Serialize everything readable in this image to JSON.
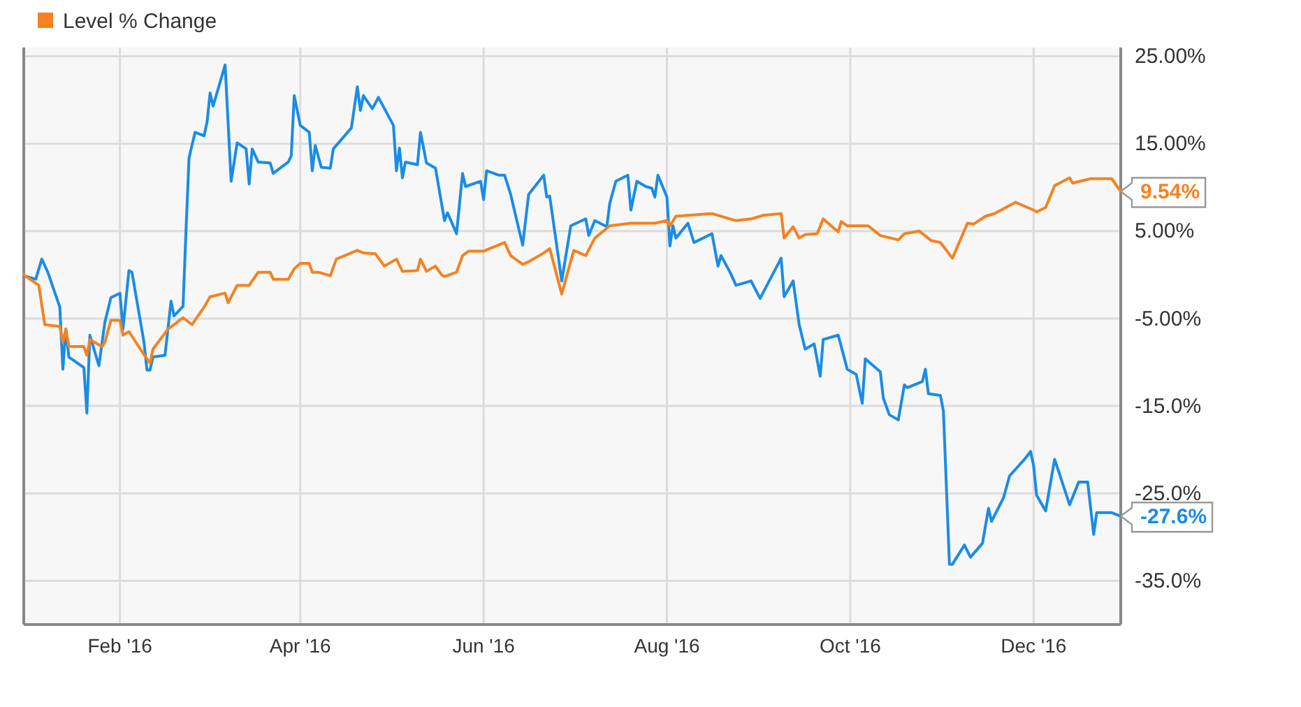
{
  "chart_data": {
    "type": "line",
    "xlim": [
      "2015-12-31",
      "2016-12-30"
    ],
    "ylim": [
      -40,
      26
    ],
    "xticks": [
      {
        "value": "2016-02-01",
        "label": "Feb '16"
      },
      {
        "value": "2016-04-01",
        "label": "Apr '16"
      },
      {
        "value": "2016-06-01",
        "label": "Jun '16"
      },
      {
        "value": "2016-08-01",
        "label": "Aug '16"
      },
      {
        "value": "2016-10-01",
        "label": "Oct '16"
      },
      {
        "value": "2016-12-01",
        "label": "Dec '16"
      }
    ],
    "yticks": [
      {
        "value": 25,
        "label": "25.00%"
      },
      {
        "value": 15,
        "label": "15.00%"
      },
      {
        "value": 5,
        "label": "5.00%"
      },
      {
        "value": -5,
        "label": "-5.00%"
      },
      {
        "value": -15,
        "label": "-15.0%"
      },
      {
        "value": -25,
        "label": "-25.0%"
      },
      {
        "value": -35,
        "label": "-35.0%"
      }
    ],
    "grid": true,
    "legend": "top left",
    "marker": "none",
    "line_style": "solid",
    "annotations": [
      {
        "text": "9.54%",
        "x": "2016-12-30",
        "y": 9.54
      },
      {
        "text": "-27.6%",
        "x": "2016-12-30",
        "y": -27.6
      }
    ],
    "series": [
      {
        "color": "#1a8ce6",
        "x": [
          "2015-12-31",
          "2016-01-04",
          "2016-01-06",
          "2016-01-08",
          "2016-01-12",
          "2016-01-13",
          "2016-01-14",
          "2016-01-15",
          "2016-01-20",
          "2016-01-21",
          "2016-01-22",
          "2016-01-25",
          "2016-01-27",
          "2016-01-29",
          "2016-02-01",
          "2016-02-02",
          "2016-02-04",
          "2016-02-05",
          "2016-02-08",
          "2016-02-09",
          "2016-02-10",
          "2016-02-11",
          "2016-02-12",
          "2016-02-16",
          "2016-02-18",
          "2016-02-19",
          "2016-02-22",
          "2016-02-23",
          "2016-02-24",
          "2016-02-26",
          "2016-02-29",
          "2016-03-01",
          "2016-03-02",
          "2016-03-03",
          "2016-03-07",
          "2016-03-09",
          "2016-03-11",
          "2016-03-14",
          "2016-03-15",
          "2016-03-16",
          "2016-03-18",
          "2016-03-22",
          "2016-03-23",
          "2016-03-28",
          "2016-03-29",
          "2016-03-30",
          "2016-04-01",
          "2016-04-04",
          "2016-04-05",
          "2016-04-06",
          "2016-04-08",
          "2016-04-11",
          "2016-04-12",
          "2016-04-18",
          "2016-04-20",
          "2016-04-21",
          "2016-04-22",
          "2016-04-25",
          "2016-04-27",
          "2016-05-02",
          "2016-05-03",
          "2016-05-04",
          "2016-05-05",
          "2016-05-06",
          "2016-05-10",
          "2016-05-11",
          "2016-05-13",
          "2016-05-16",
          "2016-05-19",
          "2016-05-20",
          "2016-05-23",
          "2016-05-25",
          "2016-05-26",
          "2016-05-31",
          "2016-06-01",
          "2016-06-02",
          "2016-06-06",
          "2016-06-08",
          "2016-06-10",
          "2016-06-14",
          "2016-06-16",
          "2016-06-21",
          "2016-06-22",
          "2016-06-23",
          "2016-06-27",
          "2016-06-30",
          "2016-07-05",
          "2016-07-06",
          "2016-07-08",
          "2016-07-12",
          "2016-07-13",
          "2016-07-15",
          "2016-07-19",
          "2016-07-20",
          "2016-07-22",
          "2016-07-25",
          "2016-07-27",
          "2016-07-28",
          "2016-07-29",
          "2016-08-01",
          "2016-08-02",
          "2016-08-03",
          "2016-08-04",
          "2016-08-08",
          "2016-08-10",
          "2016-08-16",
          "2016-08-18",
          "2016-08-19",
          "2016-08-22",
          "2016-08-24",
          "2016-08-29",
          "2016-09-01",
          "2016-09-08",
          "2016-09-09",
          "2016-09-12",
          "2016-09-14",
          "2016-09-16",
          "2016-09-19",
          "2016-09-21",
          "2016-09-22",
          "2016-09-27",
          "2016-09-30",
          "2016-10-03",
          "2016-10-05",
          "2016-10-06",
          "2016-10-11",
          "2016-10-12",
          "2016-10-14",
          "2016-10-17",
          "2016-10-19",
          "2016-10-20",
          "2016-10-25",
          "2016-10-26",
          "2016-10-27",
          "2016-10-31",
          "2016-11-01",
          "2016-11-03",
          "2016-11-04",
          "2016-11-08",
          "2016-11-10",
          "2016-11-14",
          "2016-11-16",
          "2016-11-17",
          "2016-11-21",
          "2016-11-23",
          "2016-11-28",
          "2016-11-30",
          "2016-12-01",
          "2016-12-02",
          "2016-12-05",
          "2016-12-08",
          "2016-12-13",
          "2016-12-16",
          "2016-12-19",
          "2016-12-21",
          "2016-12-22",
          "2016-12-27",
          "2016-12-30"
        ],
        "values": [
          -0.1,
          -0.5,
          1.8,
          0.3,
          -3.7,
          -10.8,
          -6.2,
          -9.4,
          -10.6,
          -15.8,
          -6.9,
          -10.4,
          -5.4,
          -2.6,
          -2.1,
          -6.2,
          0.5,
          0.3,
          -5.7,
          -7.7,
          -10.9,
          -10.9,
          -9.4,
          -9.2,
          -3.0,
          -4.7,
          -3.6,
          5.2,
          13.4,
          16.3,
          15.9,
          17.5,
          20.8,
          19.3,
          24.0,
          10.7,
          15.1,
          14.4,
          10.4,
          14.4,
          12.9,
          12.8,
          11.6,
          12.9,
          13.6,
          20.5,
          17.1,
          16.3,
          11.9,
          14.8,
          12.3,
          12.2,
          14.4,
          16.8,
          21.5,
          18.8,
          20.5,
          19.0,
          20.3,
          17.1,
          11.9,
          14.5,
          11.1,
          12.9,
          12.6,
          16.3,
          12.8,
          12.2,
          6.2,
          7.1,
          4.7,
          11.6,
          10.1,
          10.7,
          8.6,
          11.9,
          11.4,
          11.4,
          9.2,
          3.4,
          9.2,
          11.4,
          8.9,
          9.0,
          -0.7,
          5.6,
          6.4,
          4.5,
          6.2,
          5.5,
          8.2,
          10.7,
          11.4,
          7.4,
          10.7,
          10.1,
          9.9,
          8.9,
          11.4,
          8.9,
          3.3,
          5.6,
          4.2,
          5.9,
          3.7,
          4.7,
          1.0,
          2.2,
          0.3,
          -1.2,
          -0.7,
          -2.7,
          1.9,
          -2.5,
          -0.7,
          -5.7,
          -8.5,
          -7.9,
          -11.6,
          -7.4,
          -6.9,
          -10.8,
          -11.4,
          -14.7,
          -9.6,
          -11.1,
          -14.1,
          -16.0,
          -16.6,
          -12.6,
          -12.9,
          -12.2,
          -10.8,
          -13.6,
          -13.8,
          -15.6,
          -33.1,
          -33.1,
          -30.9,
          -32.3,
          -30.7,
          -26.7,
          -28.2,
          -25.5,
          -23.0,
          -21.1,
          -20.2,
          -21.8,
          -25.2,
          -27.0,
          -21.1,
          -26.3,
          -23.7,
          -23.7,
          -29.7,
          -27.2,
          -27.2,
          -27.6
        ]
      },
      {
        "name": "Level % Change",
        "color": "#f5821f",
        "x": [
          "2015-12-31",
          "2016-01-05",
          "2016-01-07",
          "2016-01-12",
          "2016-01-13",
          "2016-01-14",
          "2016-01-15",
          "2016-01-20",
          "2016-01-21",
          "2016-01-22",
          "2016-01-26",
          "2016-01-27",
          "2016-01-29",
          "2016-02-01",
          "2016-02-02",
          "2016-02-04",
          "2016-02-08",
          "2016-02-11",
          "2016-02-12",
          "2016-02-17",
          "2016-02-19",
          "2016-02-22",
          "2016-02-25",
          "2016-02-29",
          "2016-03-02",
          "2016-03-07",
          "2016-03-08",
          "2016-03-11",
          "2016-03-15",
          "2016-03-18",
          "2016-03-22",
          "2016-03-23",
          "2016-03-28",
          "2016-03-30",
          "2016-04-01",
          "2016-04-04",
          "2016-04-05",
          "2016-04-07",
          "2016-04-11",
          "2016-04-13",
          "2016-04-20",
          "2016-04-22",
          "2016-04-26",
          "2016-04-29",
          "2016-05-03",
          "2016-05-05",
          "2016-05-10",
          "2016-05-11",
          "2016-05-13",
          "2016-05-16",
          "2016-05-18",
          "2016-05-19",
          "2016-05-23",
          "2016-05-25",
          "2016-05-27",
          "2016-06-01",
          "2016-06-03",
          "2016-06-08",
          "2016-06-10",
          "2016-06-14",
          "2016-06-16",
          "2016-06-21",
          "2016-06-23",
          "2016-06-27",
          "2016-07-01",
          "2016-07-05",
          "2016-07-08",
          "2016-07-13",
          "2016-07-20",
          "2016-07-28",
          "2016-08-01",
          "2016-08-02",
          "2016-08-04",
          "2016-08-16",
          "2016-08-24",
          "2016-08-29",
          "2016-09-02",
          "2016-09-08",
          "2016-09-09",
          "2016-09-12",
          "2016-09-14",
          "2016-09-16",
          "2016-09-20",
          "2016-09-22",
          "2016-09-27",
          "2016-09-28",
          "2016-09-30",
          "2016-10-04",
          "2016-10-07",
          "2016-10-11",
          "2016-10-17",
          "2016-10-19",
          "2016-10-24",
          "2016-10-28",
          "2016-10-31",
          "2016-11-04",
          "2016-11-09",
          "2016-11-11",
          "2016-11-15",
          "2016-11-18",
          "2016-11-25",
          "2016-12-01",
          "2016-12-02",
          "2016-12-05",
          "2016-12-08",
          "2016-12-13",
          "2016-12-14",
          "2016-12-20",
          "2016-12-27",
          "2016-12-30"
        ],
        "values": [
          0,
          -1.2,
          -5.7,
          -5.9,
          -7.7,
          -6.2,
          -8.2,
          -8.2,
          -9.2,
          -7.4,
          -8.2,
          -7.7,
          -5.2,
          -5.2,
          -6.9,
          -6.5,
          -8.6,
          -10.1,
          -8.5,
          -6.2,
          -5.7,
          -4.9,
          -5.7,
          -3.7,
          -2.5,
          -2.1,
          -3.2,
          -1.2,
          -1.2,
          0.3,
          0.3,
          -0.5,
          -0.5,
          0.7,
          1.3,
          1.3,
          0.3,
          0.3,
          -0.1,
          1.8,
          2.8,
          2.5,
          2.4,
          1.0,
          1.8,
          0.4,
          0.5,
          1.8,
          0.4,
          1.0,
          0.0,
          -0.2,
          0.3,
          2.2,
          2.7,
          2.7,
          3.0,
          3.7,
          2.2,
          1.2,
          1.5,
          2.5,
          3.0,
          -2.2,
          2.8,
          2.2,
          4.2,
          5.6,
          5.9,
          5.9,
          6.2,
          5.6,
          6.7,
          7.0,
          6.2,
          6.4,
          6.8,
          7.0,
          4.2,
          5.5,
          4.2,
          4.6,
          4.7,
          6.4,
          4.9,
          6.1,
          5.6,
          5.6,
          5.6,
          4.5,
          4.0,
          4.7,
          5.0,
          3.9,
          3.7,
          1.9,
          5.9,
          5.8,
          6.7,
          7.0,
          8.3,
          7.4,
          7.2,
          7.7,
          10.2,
          11.1,
          10.5,
          11.0,
          11.0,
          9.54
        ]
      }
    ]
  }
}
